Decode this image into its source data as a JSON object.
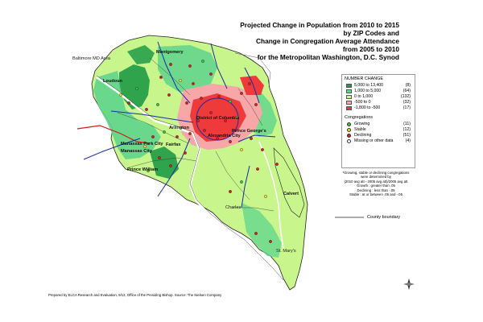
{
  "title": {
    "lines": [
      "Projected Change in Population from 2010 to 2015",
      "by ZIP Codes and",
      "Change in Congregation Average Attendance",
      "from 2005 to 2010",
      "for the Metropolitan Washington, D.C. Synod"
    ]
  },
  "legend": {
    "number_change_title": "NUMBER CHANGE",
    "ranges": [
      {
        "label": "5,000 to  13,400",
        "count": "(8)",
        "color": "#1f9a46"
      },
      {
        "label": "1,000 to   5,000",
        "count": "(64)",
        "color": "#5ed48c"
      },
      {
        "label": "0 to   1,000",
        "count": "(132)",
        "color": "#c8f58c"
      },
      {
        "label": "-500 to       0",
        "count": "(32)",
        "color": "#f7a7a7"
      },
      {
        "label": "-1,800 to    -500",
        "count": "(17)",
        "color": "#ee3a3a"
      }
    ],
    "congregations_title": "Congregations",
    "congregations": [
      {
        "label": "Growing",
        "count": "(11)",
        "color": "#3bc43b"
      },
      {
        "label": "Stable",
        "count": "(12)",
        "color": "#f0e020"
      },
      {
        "label": "Declining",
        "count": "(51)",
        "color": "#d62020"
      },
      {
        "label": "Missing or other data",
        "count": "(4)",
        "color": "#ffffff"
      }
    ]
  },
  "note": {
    "lines": [
      "*Growing, stable or declining congregations",
      "were determined by",
      "(2010 avg att - 2005 avg att)/2005 avg att",
      "Growth : greater than .05",
      "Declining : less than -.05",
      "Stable : at or between .05 and -.05"
    ]
  },
  "boundary_label": "County boundary",
  "credit": "Prepared by ELCA Research and Evaluation, 9/12, Office of the Presiding Bishop. Source: The Nielsen Company",
  "place_labels": {
    "baltimore": "Baltimore MD Area",
    "montgomery": "Montgomery",
    "loudoun": "Loudoun",
    "district": "District of Columbia",
    "arlington": "Arlington",
    "fairfax": "Fairfax",
    "alexandria": "Alexandria City",
    "prince_georges": "Prince George's",
    "manassas_park": "Manassas Park City",
    "manassas": "Manassas City",
    "prince_william": "Prince William",
    "calvert": "Calvert",
    "charles": "Charles",
    "st_marys": "St. Mary's"
  },
  "colors": {
    "boundary": "#222222",
    "highway": "#1a2ea8",
    "highway_red": "#d21a1a",
    "water": "#ffffff"
  }
}
